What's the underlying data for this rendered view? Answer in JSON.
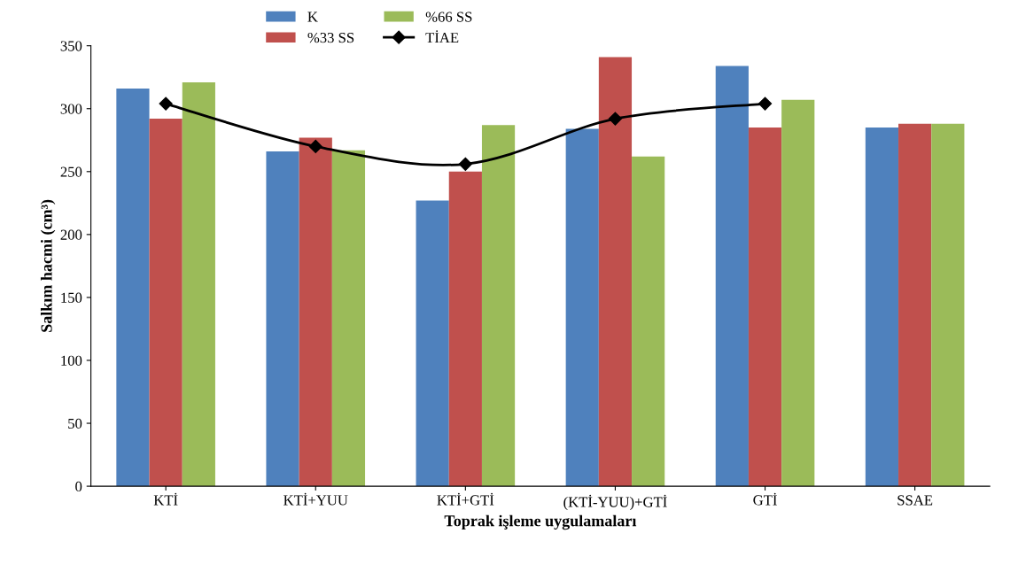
{
  "chart_data": {
    "type": "bar",
    "xlabel": "Toprak işleme uygulamaları",
    "ylabel": "Salkım hacmi (cm³)",
    "categories": [
      "KTİ",
      "KTİ+YUU",
      "KTİ+GTİ",
      "(KTİ-YUU)+GTİ",
      "GTİ",
      "SSAE"
    ],
    "series": [
      {
        "name": "K",
        "color": "#4f81bd",
        "values": [
          316,
          266,
          227,
          284,
          334,
          285
        ]
      },
      {
        "name": "%33 SS",
        "color": "#c0504d",
        "values": [
          292,
          277,
          250,
          341,
          285,
          288
        ]
      },
      {
        "name": "%66 SS",
        "color": "#9bbb59",
        "values": [
          321,
          267,
          287,
          262,
          307,
          288
        ]
      },
      {
        "name": "TİAE",
        "type": "line",
        "color": "#000000",
        "marker": "diamond",
        "values": [
          304,
          270,
          256,
          292,
          304,
          null
        ]
      }
    ],
    "ylim": [
      0,
      350
    ],
    "yticks": [
      0,
      50,
      100,
      150,
      200,
      250,
      300,
      350
    ],
    "grid": false,
    "legend": "top"
  }
}
